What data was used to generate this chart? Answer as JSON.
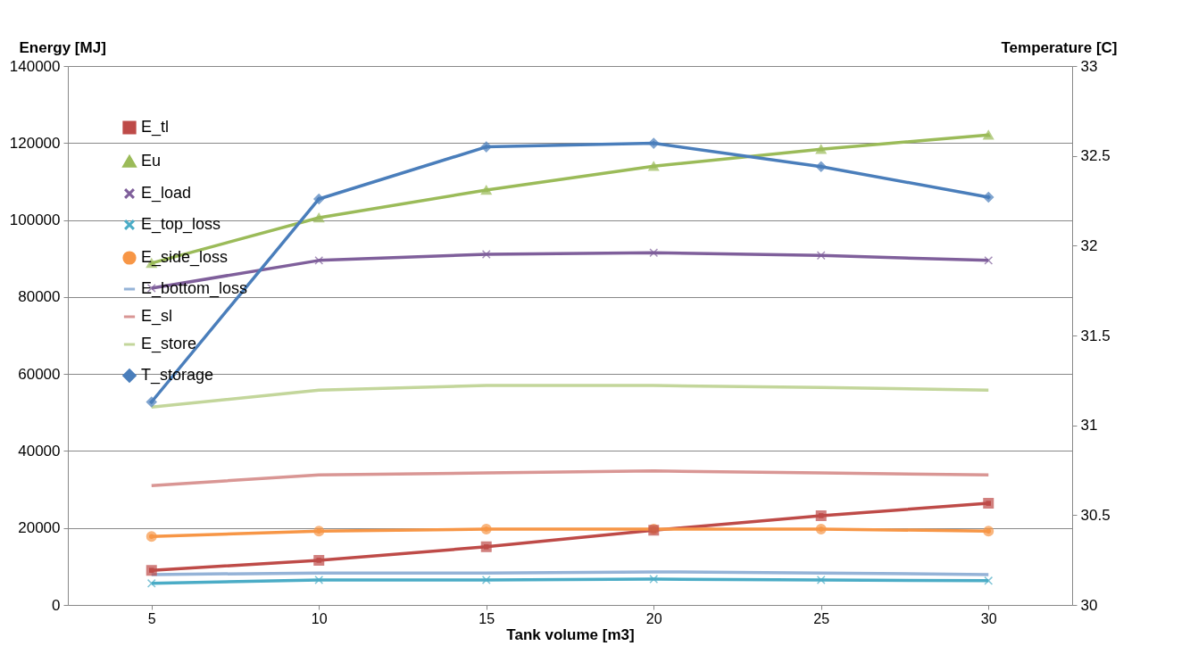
{
  "chart_data": {
    "type": "line",
    "xlabel": "Tank volume [m3]",
    "ylabel": "Energy [MJ]",
    "y2label": "Temperature [C]",
    "categories": [
      "5",
      "10",
      "15",
      "20",
      "25",
      "30"
    ],
    "ylim": [
      0,
      140000
    ],
    "yticks": [
      0,
      20000,
      40000,
      60000,
      80000,
      100000,
      120000,
      140000
    ],
    "y2lim": [
      30,
      33
    ],
    "y2ticks": [
      30,
      30.5,
      31,
      31.5,
      32,
      32.5,
      33
    ],
    "grid": "y",
    "legend": "top left",
    "series": [
      {
        "name": "E_tl",
        "color": "#be4b48",
        "marker": "square",
        "values": [
          9000,
          11600,
          15100,
          19400,
          23200,
          26400
        ]
      },
      {
        "name": "Eu",
        "color": "#9bbb59",
        "marker": "triangle",
        "values": [
          88800,
          100600,
          107800,
          114000,
          118400,
          122100
        ]
      },
      {
        "name": "E_load",
        "color": "#7f5f9b",
        "marker": "cross",
        "values": [
          82300,
          89500,
          91100,
          91500,
          90800,
          89500
        ]
      },
      {
        "name": "E_top_loss",
        "color": "#4bacc6",
        "marker": "cross",
        "values": [
          5600,
          6500,
          6500,
          6700,
          6500,
          6300
        ]
      },
      {
        "name": "E_side_loss",
        "color": "#f79646",
        "marker": "circle",
        "values": [
          17800,
          19200,
          19700,
          19700,
          19700,
          19200
        ]
      },
      {
        "name": "E_bottom_loss",
        "color": "#95b3d7",
        "marker": "none",
        "values": [
          7900,
          8300,
          8300,
          8600,
          8300,
          7900
        ]
      },
      {
        "name": "E_sl",
        "color": "#d99694",
        "marker": "none",
        "values": [
          31000,
          33800,
          34300,
          34800,
          34300,
          33800
        ]
      },
      {
        "name": "E_store",
        "color": "#c3d69b",
        "marker": "none",
        "values": [
          51400,
          55800,
          57000,
          57000,
          56500,
          55800
        ]
      },
      {
        "name": "T_storage",
        "color": "#4a7ebb",
        "marker": "diamond",
        "axis": "y2",
        "values": [
          31.13,
          32.26,
          32.55,
          32.57,
          32.44,
          32.27
        ]
      }
    ]
  }
}
